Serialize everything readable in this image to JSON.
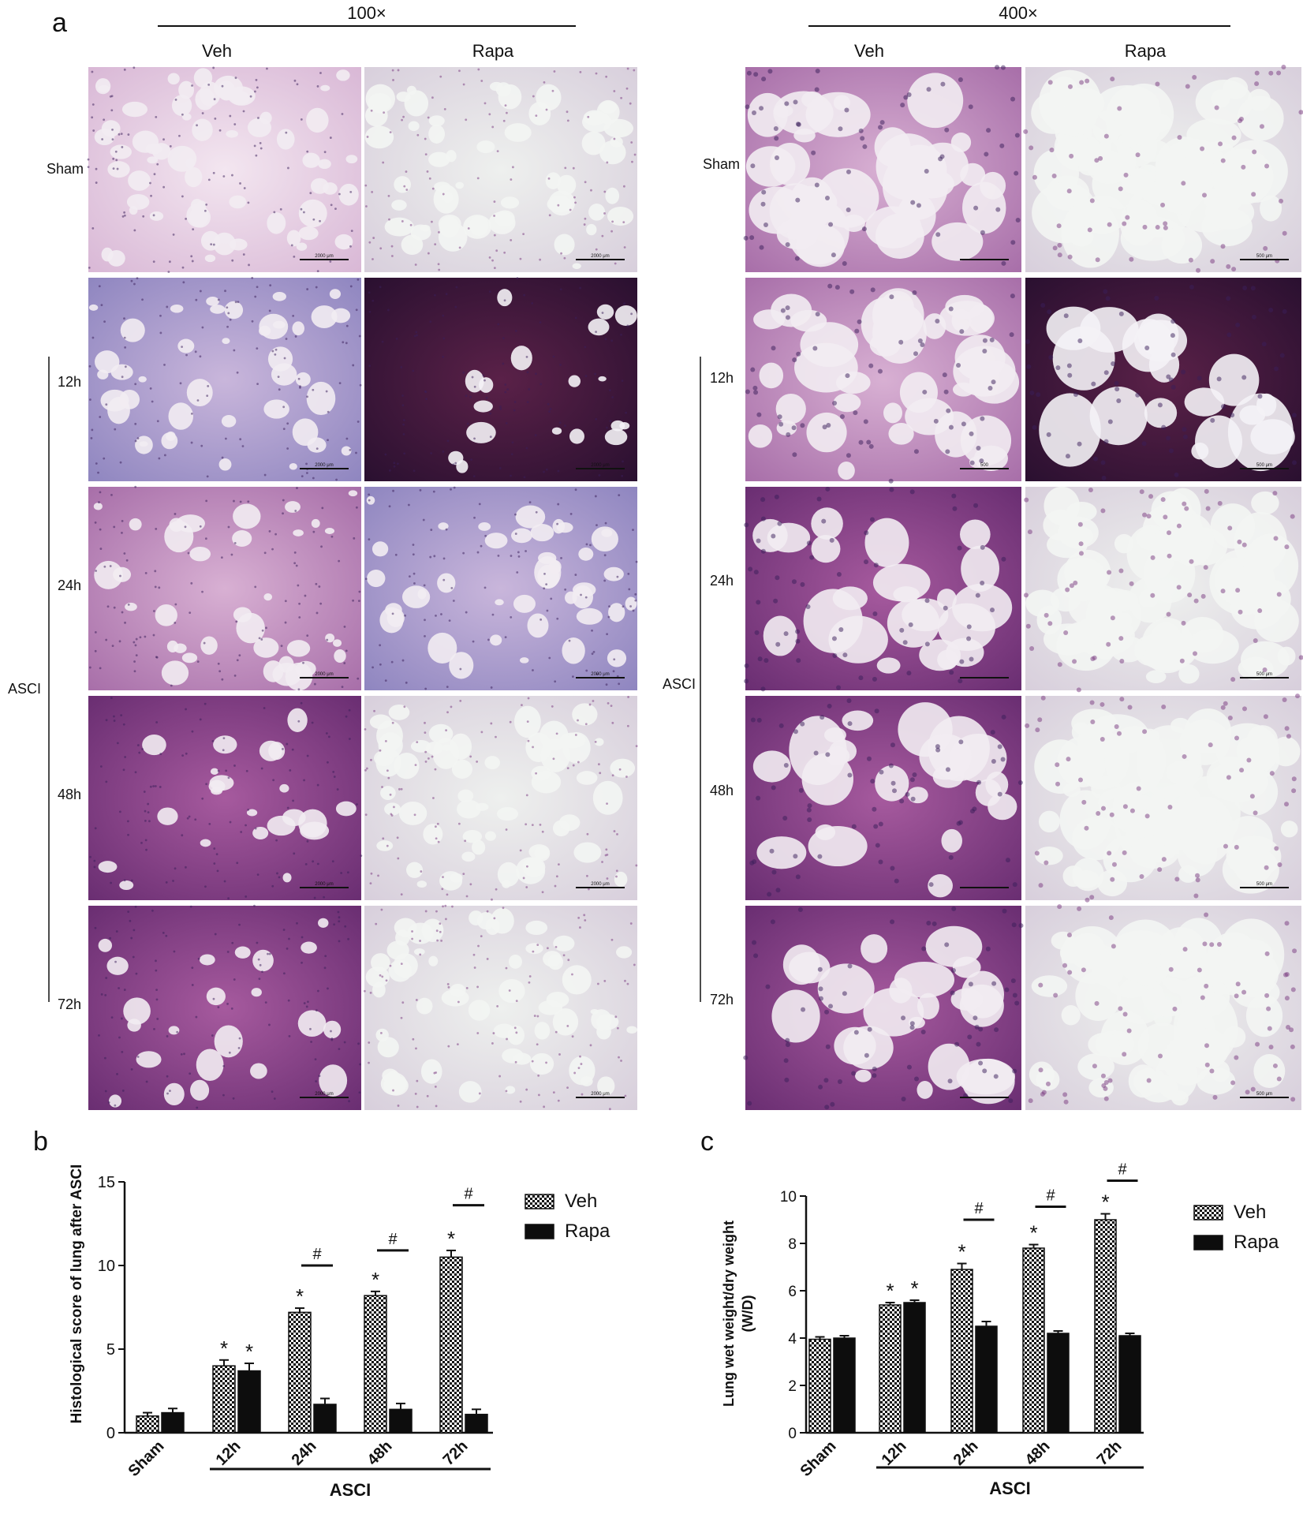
{
  "panel_labels": {
    "a": "a",
    "b": "b",
    "c": "c"
  },
  "panel_a": {
    "magnifications": [
      "100×",
      "400×"
    ],
    "columns": [
      "Veh",
      "Rapa"
    ],
    "rows": [
      "Sham",
      "12h",
      "24h",
      "48h",
      "72h"
    ],
    "group_label": "ASCI",
    "scalebars": {
      "100x": [
        "2000 μm",
        "2000 μm",
        "2000 μm",
        "2000 μm",
        "2000 μm",
        "2000 μm",
        "2000 μm",
        "2000 μm",
        "2000 μm",
        "2000 μm"
      ],
      "400x": [
        "",
        "500 μm",
        "500",
        "500 μm",
        "",
        "500 μm",
        "",
        "500 μm",
        "",
        "500 μm"
      ]
    }
  },
  "chart_data": [
    {
      "type": "bar",
      "categories": [
        "Sham",
        "12h",
        "24h",
        "48h",
        "72h"
      ],
      "series": [
        {
          "name": "Veh",
          "values": [
            1.0,
            4.0,
            7.2,
            8.2,
            10.5
          ],
          "errors": [
            0.2,
            0.35,
            0.25,
            0.25,
            0.4
          ]
        },
        {
          "name": "Rapa",
          "values": [
            1.2,
            3.7,
            1.7,
            1.4,
            1.1
          ],
          "errors": [
            0.25,
            0.45,
            0.35,
            0.35,
            0.3
          ]
        }
      ],
      "ylabel": "Histological score of lung after ASCI",
      "xlabel": "ASCI",
      "ylim": [
        0,
        15
      ],
      "yticks": [
        0,
        5,
        10,
        15
      ],
      "legend": "top-right",
      "significance": [
        {
          "category": 1,
          "series": "Veh",
          "mark": "*"
        },
        {
          "category": 1,
          "series": "Rapa",
          "mark": "*"
        },
        {
          "category": 2,
          "series": "Veh",
          "mark": "*"
        },
        {
          "category": 3,
          "series": "Veh",
          "mark": "*"
        },
        {
          "category": 4,
          "series": "Veh",
          "mark": "*"
        }
      ],
      "comparisons": [
        {
          "category": 2,
          "y": 10.0,
          "mark": "#"
        },
        {
          "category": 3,
          "y": 10.9,
          "mark": "#"
        },
        {
          "category": 4,
          "y": 13.6,
          "mark": "#"
        }
      ]
    },
    {
      "type": "bar",
      "categories": [
        "Sham",
        "12h",
        "24h",
        "48h",
        "72h"
      ],
      "series": [
        {
          "name": "Veh",
          "values": [
            3.95,
            5.4,
            6.9,
            7.8,
            9.0
          ],
          "errors": [
            0.1,
            0.1,
            0.25,
            0.15,
            0.25
          ]
        },
        {
          "name": "Rapa",
          "values": [
            4.0,
            5.5,
            4.5,
            4.2,
            4.1
          ],
          "errors": [
            0.1,
            0.1,
            0.2,
            0.1,
            0.1
          ]
        }
      ],
      "ylabel": "Lung wet weight/dry weight\n(W/D)",
      "xlabel": "ASCI",
      "ylim": [
        0,
        10
      ],
      "yticks": [
        0,
        2,
        4,
        6,
        8,
        10
      ],
      "legend": "top-right",
      "significance": [
        {
          "category": 1,
          "series": "Veh",
          "mark": "*"
        },
        {
          "category": 1,
          "series": "Rapa",
          "mark": "*"
        },
        {
          "category": 2,
          "series": "Veh",
          "mark": "*"
        },
        {
          "category": 3,
          "series": "Veh",
          "mark": "*"
        },
        {
          "category": 4,
          "series": "Veh",
          "mark": "*"
        }
      ],
      "comparisons": [
        {
          "category": 2,
          "y": 9.0,
          "mark": "#"
        },
        {
          "category": 3,
          "y": 9.55,
          "mark": "#"
        },
        {
          "category": 4,
          "y": 10.65,
          "mark": "#"
        }
      ]
    }
  ]
}
